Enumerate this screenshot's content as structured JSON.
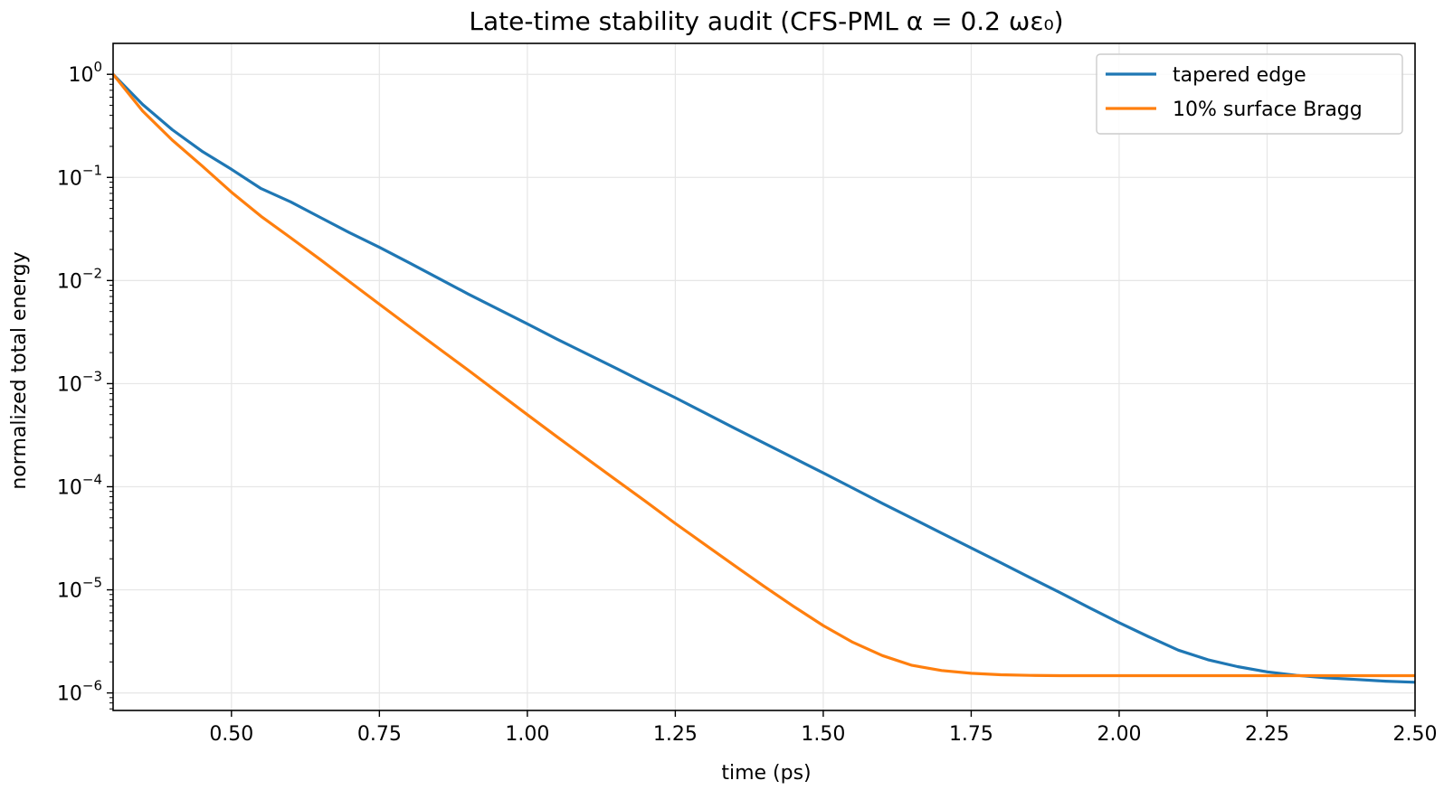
{
  "chart_data": {
    "type": "line",
    "title": "Late-time stability audit (CFS-PML α = 0.2 ωε₀)",
    "xlabel": "time (ps)",
    "ylabel": "normalized total energy",
    "xlim": [
      0.3,
      2.5
    ],
    "ylim_log10": [
      -6.17,
      0.3
    ],
    "yscale": "log",
    "grid": true,
    "legend_position": "top-right",
    "x_ticks": [
      0.5,
      0.75,
      1.0,
      1.25,
      1.5,
      1.75,
      2.0,
      2.25,
      2.5
    ],
    "x_tick_labels": [
      "0.50",
      "0.75",
      "1.00",
      "1.25",
      "1.50",
      "1.75",
      "2.00",
      "2.25",
      "2.50"
    ],
    "y_ticks": [
      {
        "exp": 0,
        "base": "10",
        "sup": "0"
      },
      {
        "exp": -1,
        "base": "10",
        "sup": "−1"
      },
      {
        "exp": -2,
        "base": "10",
        "sup": "−2"
      },
      {
        "exp": -3,
        "base": "10",
        "sup": "−3"
      },
      {
        "exp": -4,
        "base": "10",
        "sup": "−4"
      },
      {
        "exp": -5,
        "base": "10",
        "sup": "−5"
      },
      {
        "exp": -6,
        "base": "10",
        "sup": "−6"
      }
    ],
    "series": [
      {
        "name": "tapered edge",
        "color": "#1f77b4",
        "x": [
          0.3,
          0.35,
          0.4,
          0.45,
          0.5,
          0.55,
          0.6,
          0.65,
          0.7,
          0.75,
          0.8,
          0.85,
          0.9,
          0.95,
          1.0,
          1.05,
          1.1,
          1.15,
          1.2,
          1.25,
          1.3,
          1.35,
          1.4,
          1.45,
          1.5,
          1.55,
          1.6,
          1.65,
          1.7,
          1.75,
          1.8,
          1.85,
          1.9,
          1.95,
          2.0,
          2.05,
          2.1,
          2.15,
          2.2,
          2.25,
          2.3,
          2.35,
          2.4,
          2.45,
          2.5
        ],
        "y": [
          1.0,
          0.51,
          0.29,
          0.18,
          0.12,
          0.078,
          0.058,
          0.041,
          0.029,
          0.021,
          0.0149,
          0.0105,
          0.0074,
          0.0053,
          0.0038,
          0.0027,
          0.00195,
          0.00141,
          0.00101,
          0.00073,
          0.00052,
          0.00037,
          0.000265,
          0.00019,
          0.000136,
          9.7e-05,
          6.9e-05,
          4.95e-05,
          3.55e-05,
          2.55e-05,
          1.83e-05,
          1.31e-05,
          9.4e-06,
          6.7e-06,
          4.8e-06,
          3.5e-06,
          2.6e-06,
          2.1e-06,
          1.8e-06,
          1.6e-06,
          1.48e-06,
          1.4e-06,
          1.35e-06,
          1.3e-06,
          1.27e-06
        ]
      },
      {
        "name": "10% surface Bragg",
        "color": "#ff7f0e",
        "x": [
          0.3,
          0.35,
          0.4,
          0.45,
          0.5,
          0.55,
          0.6,
          0.65,
          0.7,
          0.75,
          0.8,
          0.85,
          0.9,
          0.95,
          1.0,
          1.05,
          1.1,
          1.15,
          1.2,
          1.25,
          1.3,
          1.35,
          1.4,
          1.45,
          1.5,
          1.55,
          1.6,
          1.65,
          1.7,
          1.75,
          1.8,
          1.85,
          1.9,
          1.95,
          2.0,
          2.05,
          2.1,
          2.15,
          2.2,
          2.25,
          2.3,
          2.35,
          2.4,
          2.45,
          2.5
        ],
        "y": [
          1.0,
          0.44,
          0.23,
          0.13,
          0.072,
          0.042,
          0.026,
          0.016,
          0.0097,
          0.0059,
          0.0036,
          0.0022,
          0.00135,
          0.00082,
          0.0005,
          0.000305,
          0.000188,
          0.000116,
          7.2e-05,
          4.4e-05,
          2.75e-05,
          1.72e-05,
          1.08e-05,
          6.9e-06,
          4.5e-06,
          3.1e-06,
          2.3e-06,
          1.85e-06,
          1.65e-06,
          1.55e-06,
          1.5e-06,
          1.48e-06,
          1.47e-06,
          1.47e-06,
          1.47e-06,
          1.47e-06,
          1.47e-06,
          1.47e-06,
          1.47e-06,
          1.47e-06,
          1.47e-06,
          1.47e-06,
          1.47e-06,
          1.47e-06,
          1.47e-06
        ]
      }
    ]
  }
}
